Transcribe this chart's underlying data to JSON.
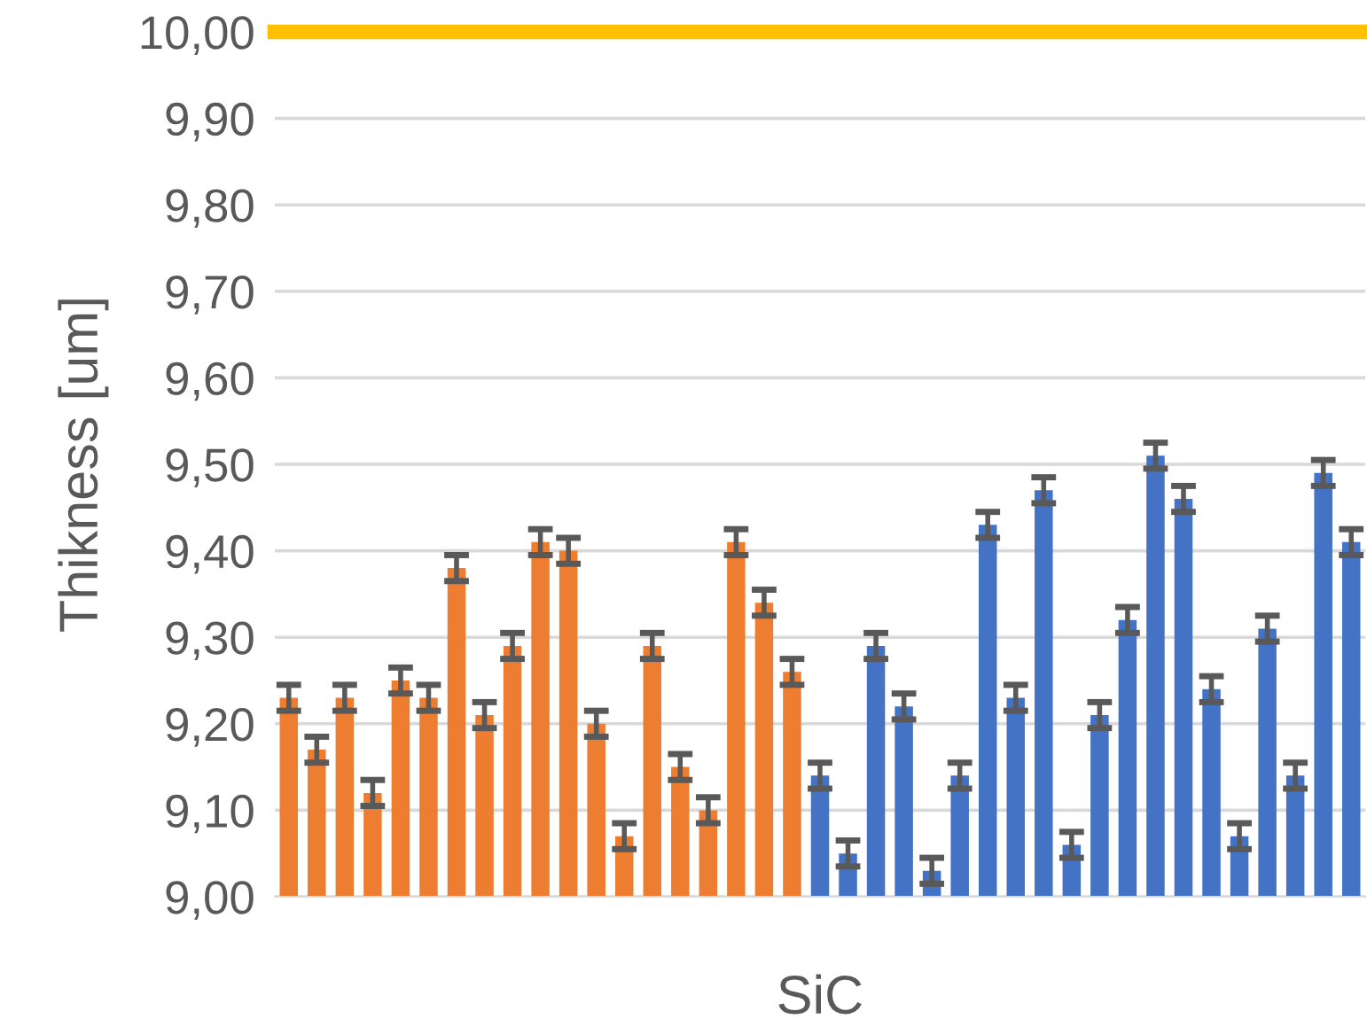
{
  "chart_data": {
    "type": "bar",
    "xlabel": "SiC",
    "ylabel": "Thikness [um]",
    "categories": [
      null,
      null,
      null,
      null,
      null,
      null,
      null,
      null,
      null,
      null,
      null,
      null,
      null,
      null,
      null,
      null,
      null,
      null,
      null,
      null,
      null,
      null,
      null,
      null,
      null,
      null,
      null,
      null,
      null,
      null,
      null,
      null,
      null,
      null,
      null,
      null,
      null,
      null,
      null
    ],
    "values": [
      9.23,
      9.17,
      9.23,
      9.12,
      9.25,
      9.23,
      9.38,
      9.21,
      9.29,
      9.41,
      9.4,
      9.2,
      9.07,
      9.29,
      9.15,
      9.1,
      9.41,
      9.34,
      9.26,
      9.14,
      9.05,
      9.29,
      9.22,
      9.03,
      9.14,
      9.43,
      9.23,
      9.47,
      9.06,
      9.21,
      9.32,
      9.51,
      9.46,
      9.24,
      9.07,
      9.31,
      9.14,
      9.49,
      9.41
    ],
    "errors": [
      0.015,
      0.015,
      0.015,
      0.015,
      0.015,
      0.015,
      0.015,
      0.015,
      0.015,
      0.015,
      0.015,
      0.015,
      0.015,
      0.015,
      0.015,
      0.015,
      0.015,
      0.015,
      0.015,
      0.015,
      0.015,
      0.015,
      0.015,
      0.015,
      0.015,
      0.015,
      0.015,
      0.015,
      0.015,
      0.015,
      0.015,
      0.015,
      0.015,
      0.015,
      0.015,
      0.015,
      0.015,
      0.015,
      0.015
    ],
    "colors": [
      "#ed7d31",
      "#ed7d31",
      "#ed7d31",
      "#ed7d31",
      "#ed7d31",
      "#ed7d31",
      "#ed7d31",
      "#ed7d31",
      "#ed7d31",
      "#ed7d31",
      "#ed7d31",
      "#ed7d31",
      "#ed7d31",
      "#ed7d31",
      "#ed7d31",
      "#ed7d31",
      "#ed7d31",
      "#ed7d31",
      "#ed7d31",
      "#4472c4",
      "#4472c4",
      "#4472c4",
      "#4472c4",
      "#4472c4",
      "#4472c4",
      "#4472c4",
      "#4472c4",
      "#4472c4",
      "#4472c4",
      "#4472c4",
      "#4472c4",
      "#4472c4",
      "#4472c4",
      "#4472c4",
      "#4472c4",
      "#4472c4",
      "#4472c4",
      "#4472c4",
      "#4472c4"
    ],
    "ylim": [
      9.0,
      10.0
    ],
    "yticks": [
      {
        "value": 9.0,
        "label": "9,00"
      },
      {
        "value": 9.1,
        "label": "9,10"
      },
      {
        "value": 9.2,
        "label": "9,20"
      },
      {
        "value": 9.3,
        "label": "9,30"
      },
      {
        "value": 9.4,
        "label": "9,40"
      },
      {
        "value": 9.5,
        "label": "9,50"
      },
      {
        "value": 9.6,
        "label": "9,60"
      },
      {
        "value": 9.7,
        "label": "9,70"
      },
      {
        "value": 9.8,
        "label": "9,80"
      },
      {
        "value": 9.9,
        "label": "9,90"
      },
      {
        "value": 10.0,
        "label": "10,00"
      }
    ],
    "ref_lines": [
      {
        "axis": "y",
        "value": 10.0,
        "color": "#ffc000"
      }
    ],
    "grid": "y",
    "legend": false
  }
}
